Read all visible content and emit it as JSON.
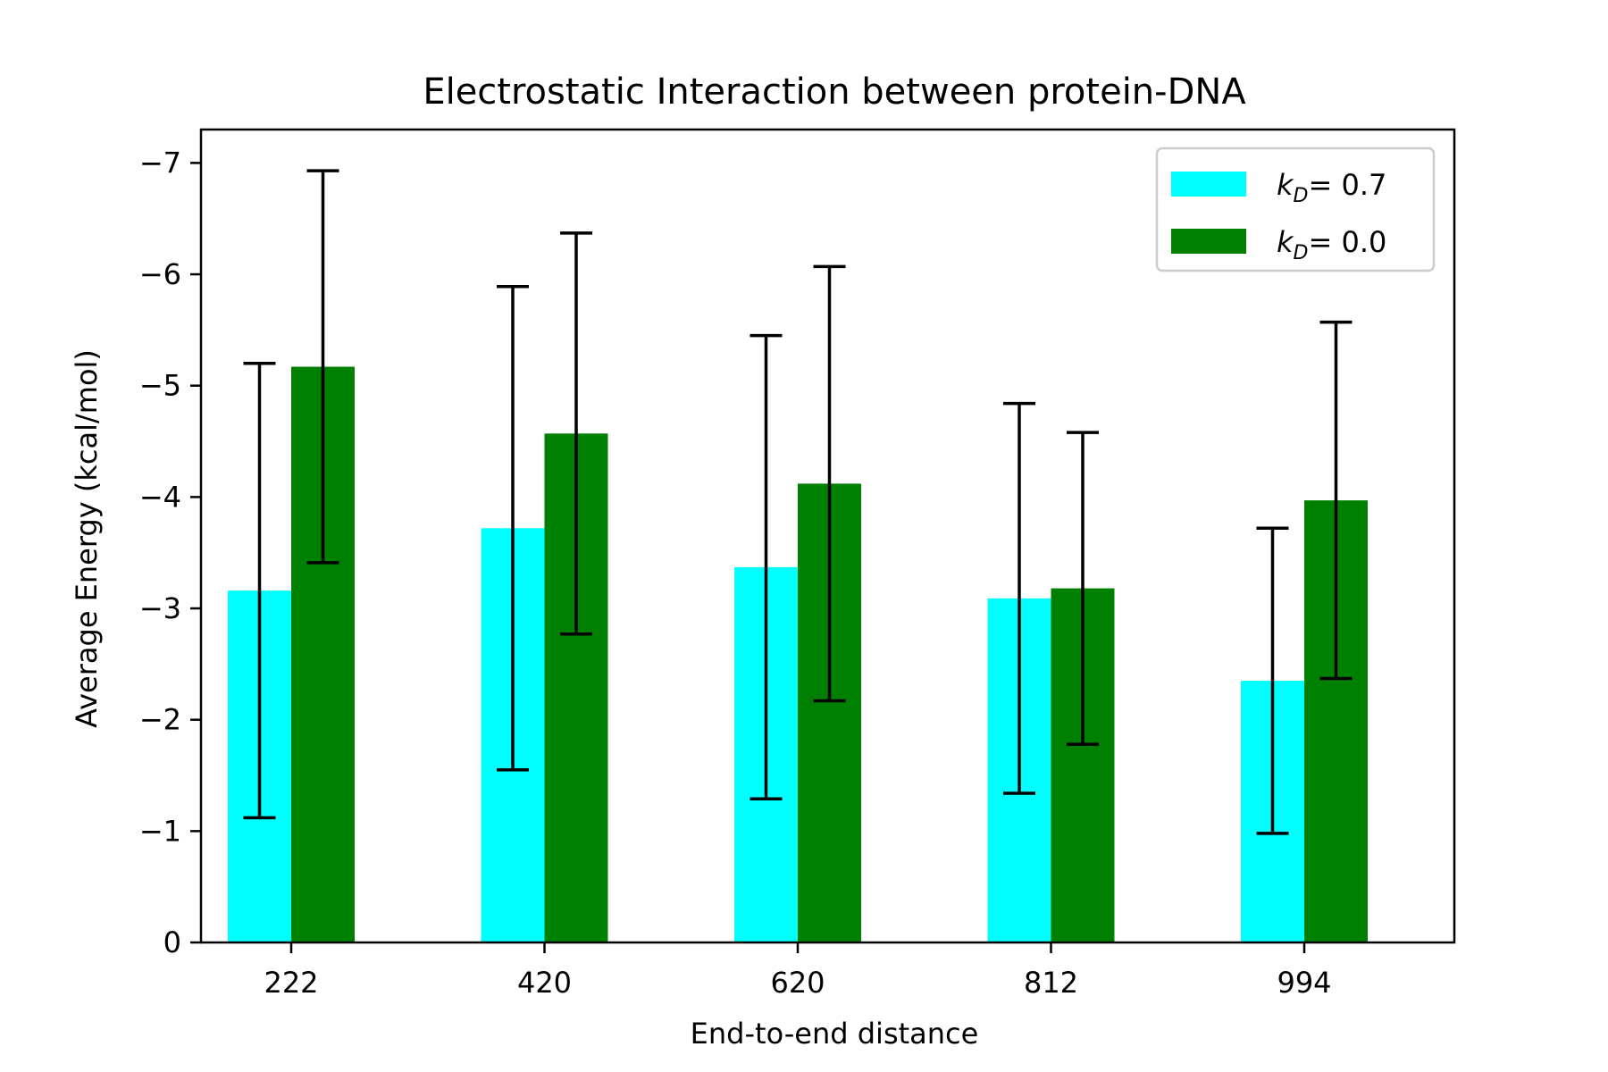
{
  "chart_data": {
    "type": "bar",
    "title": "Electrostatic Interaction between protein-DNA",
    "xlabel": "End-to-end distance",
    "ylabel": "Average Energy (kcal/mol)",
    "categories": [
      "222",
      "420",
      "620",
      "812",
      "994"
    ],
    "y_inverted": true,
    "ylim": [
      0,
      -7.3
    ],
    "yticks": [
      0,
      -1,
      -2,
      -3,
      -4,
      -5,
      -6,
      -7
    ],
    "ytick_labels": [
      "0",
      "−1",
      "−2",
      "−3",
      "−4",
      "−5",
      "−6",
      "−7"
    ],
    "legend_position": "top-right",
    "series": [
      {
        "name_symbol": "k",
        "name_sub": "D",
        "name_value": "= 0.7",
        "color": "#00ffff",
        "values": [
          -3.16,
          -3.72,
          -3.37,
          -3.09,
          -2.35
        ],
        "errors": [
          2.04,
          2.17,
          2.08,
          1.75,
          1.37
        ]
      },
      {
        "name_symbol": "k",
        "name_sub": "D",
        "name_value": "= 0.0",
        "color": "#008000",
        "values": [
          -5.17,
          -4.57,
          -4.12,
          -3.18,
          -3.97
        ],
        "errors": [
          1.76,
          1.8,
          1.95,
          1.4,
          1.6
        ]
      }
    ]
  }
}
